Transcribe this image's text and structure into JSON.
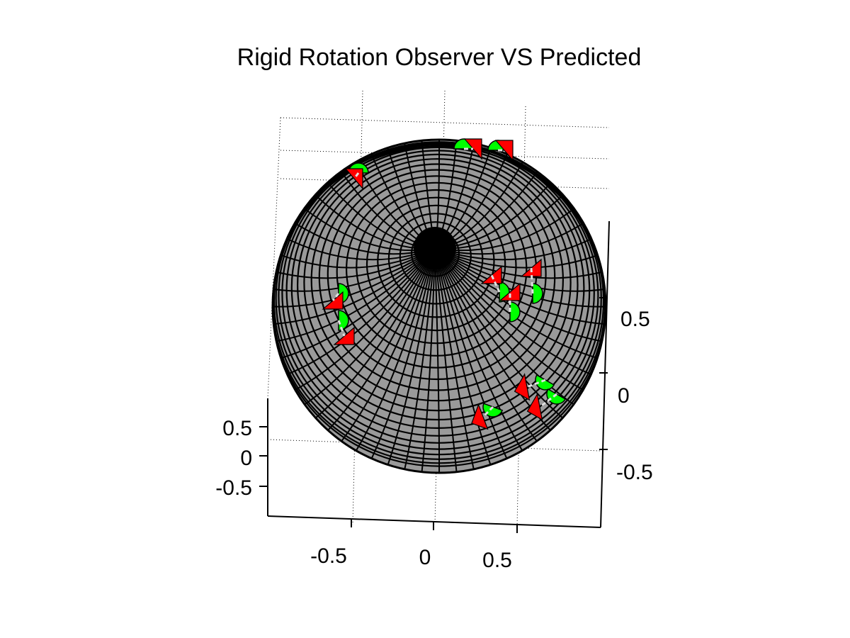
{
  "chart_data": {
    "type": "scatter",
    "title": "Rigid Rotation Observer VS Predicted",
    "view": "3d",
    "surface": "unit sphere (wireframe mesh)",
    "colors": {
      "sphere_fill": "#9a9a9a",
      "sphere_mesh": "#000000",
      "observed": "#00ff00",
      "predicted": "#ff0000",
      "connector": "#e0e0e0"
    },
    "legend": "none",
    "grid": true,
    "axes": {
      "x": {
        "ticks": [
          "-0.5",
          "0",
          "0.5"
        ],
        "range": [
          -1,
          1
        ]
      },
      "y": {
        "ticks": [
          "-0.5",
          "0",
          "0.5"
        ],
        "range": [
          -1,
          1
        ]
      },
      "z": {
        "ticks": [
          "-0.5",
          "0",
          "0.5"
        ],
        "range": [
          -1,
          1
        ]
      }
    }
  }
}
